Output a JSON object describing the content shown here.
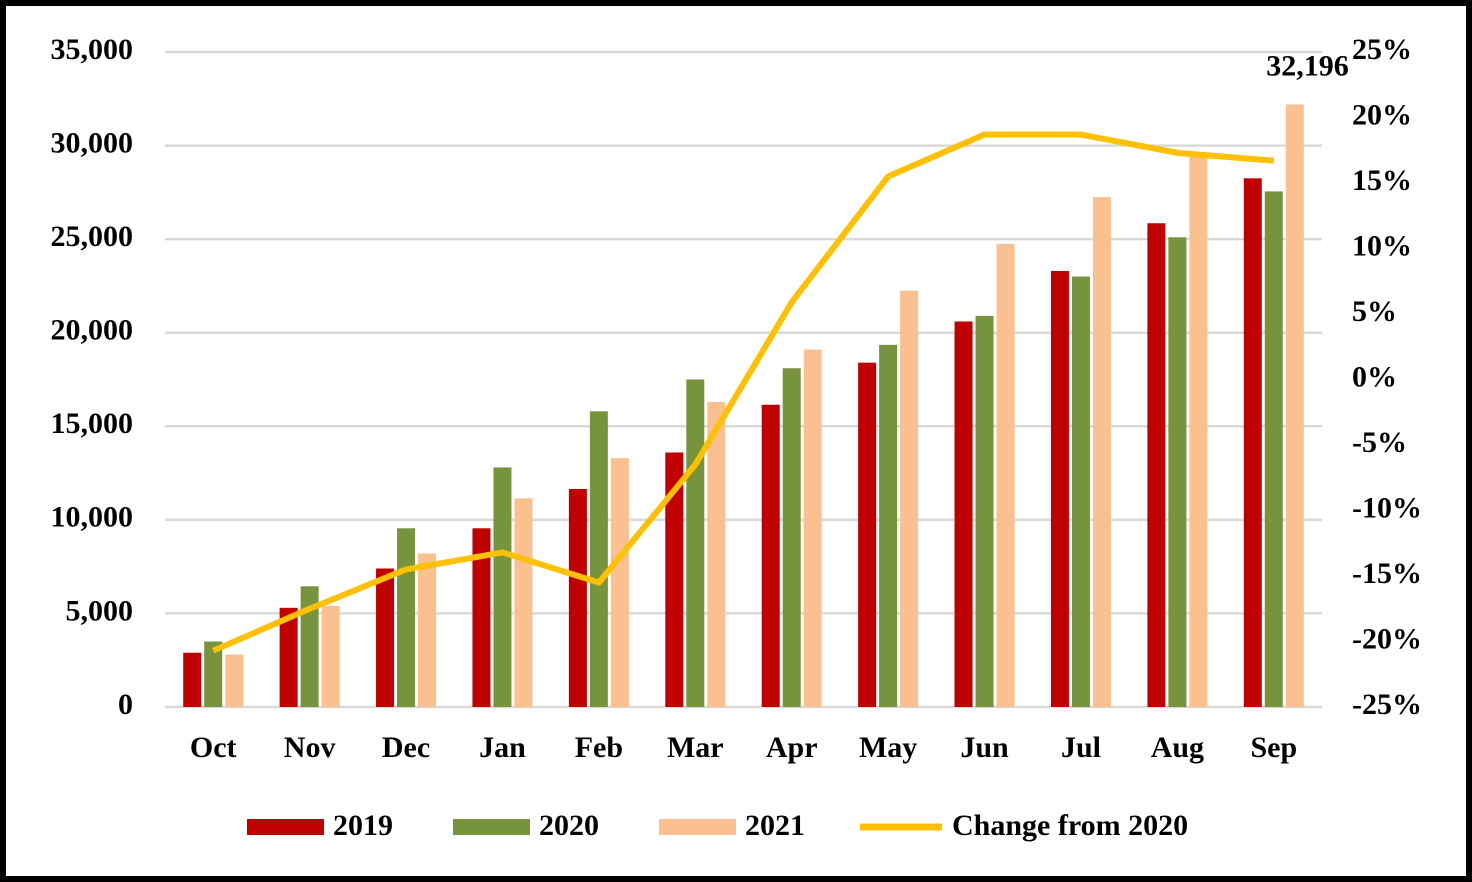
{
  "chart_data": {
    "type": "bar",
    "categories": [
      "Oct",
      "Nov",
      "Dec",
      "Jan",
      "Feb",
      "Mar",
      "Apr",
      "May",
      "Jun",
      "Jul",
      "Aug",
      "Sep"
    ],
    "series": [
      {
        "name": "2019",
        "color": "#c00000",
        "values": [
          2900,
          5300,
          7400,
          9550,
          11650,
          13600,
          16150,
          18400,
          20600,
          23300,
          25850,
          28250
        ]
      },
      {
        "name": "2020",
        "color": "#77933c",
        "values": [
          3500,
          6450,
          9550,
          12800,
          15800,
          17500,
          18100,
          19350,
          20900,
          23000,
          25100,
          27550
        ]
      },
      {
        "name": "2021",
        "color": "#fac090",
        "values": [
          2800,
          5400,
          8200,
          11150,
          13300,
          16300,
          19100,
          22250,
          24750,
          27250,
          29500,
          32196
        ],
        "value_labels": [
          null,
          null,
          null,
          null,
          null,
          null,
          null,
          null,
          null,
          null,
          null,
          "32,196"
        ]
      },
      {
        "name": "Change from 2020",
        "type": "line",
        "axis": "y2",
        "color": "#ffc000",
        "values": [
          -20.7,
          -17.5,
          -14.5,
          -13.2,
          -15.5,
          -6.5,
          5.9,
          15.5,
          18.7,
          18.7,
          17.3,
          16.7
        ]
      }
    ],
    "ylim": [
      0,
      35000
    ],
    "yticks": [
      0,
      {
        "value": 5000,
        "label": "5,000"
      },
      {
        "value": 10000,
        "label": "10,000"
      },
      {
        "value": 15000,
        "label": "15,000"
      },
      {
        "value": 20000,
        "label": "20,000"
      },
      {
        "value": 25000,
        "label": "25,000"
      },
      {
        "value": 30000,
        "label": "30,000"
      },
      {
        "value": 35000,
        "label": "35,000"
      }
    ],
    "y2lim": [
      -25,
      25
    ],
    "y2ticks": [
      {
        "value": -25,
        "label": "-25%"
      },
      {
        "value": -20,
        "label": "-20%"
      },
      {
        "value": -15,
        "label": "-15%"
      },
      {
        "value": -10,
        "label": "-10%"
      },
      {
        "value": -5,
        "label": "-5%"
      },
      {
        "value": 0,
        "label": "0%"
      },
      {
        "value": 5,
        "label": "5%"
      },
      {
        "value": 10,
        "label": "10%"
      },
      {
        "value": 15,
        "label": "15%"
      },
      {
        "value": 20,
        "label": "20%"
      },
      {
        "value": 25,
        "label": "25%"
      }
    ],
    "grid": true,
    "legend": "bottom"
  }
}
